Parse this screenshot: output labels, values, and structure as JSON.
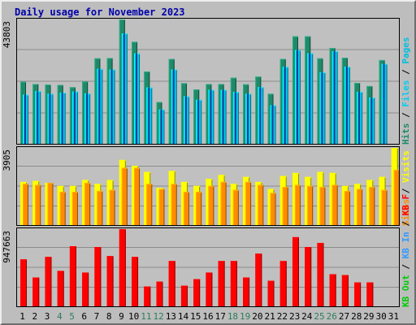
{
  "chart_data": [
    {
      "type": "bar",
      "title": "Daily usage for November 2023",
      "max_label": "43803",
      "ylim": [
        0,
        43803
      ],
      "grid": true,
      "legend_placement": "right",
      "categories": [
        "1",
        "2",
        "3",
        "4",
        "5",
        "6",
        "7",
        "8",
        "9",
        "10",
        "11",
        "12",
        "13",
        "14",
        "15",
        "16",
        "17",
        "18",
        "19",
        "20",
        "21",
        "22",
        "23",
        "24",
        "25",
        "26",
        "27",
        "28",
        "29",
        "30",
        "31"
      ],
      "highlighted_categories": [
        "4",
        "5",
        "11",
        "12",
        "18",
        "19",
        "25",
        "26"
      ],
      "highlight_color": "#2e7d5b",
      "series": [
        {
          "name": "Pages",
          "color": "#00bfe0",
          "values": [
            17500,
            18700,
            17800,
            18200,
            18600,
            17900,
            26500,
            26300,
            38900,
            31900,
            20000,
            12300,
            26300,
            16900,
            15700,
            19200,
            19200,
            18400,
            17800,
            20100,
            13800,
            27200,
            33100,
            32000,
            25300,
            32700,
            27300,
            18500,
            16500,
            28300,
            null
          ]
        },
        {
          "name": "Files",
          "color": "#00ccf0",
          "values": [
            17500,
            18700,
            17800,
            18200,
            18600,
            17900,
            26500,
            26300,
            38900,
            31900,
            20000,
            12300,
            26300,
            16900,
            15700,
            19200,
            19200,
            18400,
            17800,
            20100,
            13800,
            27200,
            33100,
            32000,
            25300,
            32700,
            27300,
            18500,
            16500,
            28300,
            null
          ]
        },
        {
          "name": "Hits",
          "color": "#1f8a6a",
          "values": [
            22000,
            21200,
            21000,
            20900,
            20100,
            22100,
            30200,
            30300,
            43803,
            36000,
            25600,
            14900,
            30000,
            21500,
            19300,
            21200,
            21200,
            23400,
            21100,
            23800,
            17800,
            30000,
            37900,
            37900,
            30200,
            33800,
            30400,
            21600,
            20500,
            29600,
            null
          ]
        }
      ]
    },
    {
      "type": "bar",
      "max_label": "3905",
      "ylim": [
        0,
        3905
      ],
      "grid": true,
      "legend_placement": "right",
      "categories": [
        "1",
        "2",
        "3",
        "4",
        "5",
        "6",
        "7",
        "8",
        "9",
        "10",
        "11",
        "12",
        "13",
        "14",
        "15",
        "16",
        "17",
        "18",
        "19",
        "20",
        "21",
        "22",
        "23",
        "24",
        "25",
        "26",
        "27",
        "28",
        "29",
        "30",
        "31"
      ],
      "series": [
        {
          "name": "Visits",
          "color": "#ffff00",
          "values": [
            2200,
            2250,
            2150,
            2000,
            2000,
            2300,
            2100,
            2300,
            3300,
            3000,
            2700,
            1900,
            2750,
            2200,
            2000,
            2350,
            2550,
            2100,
            2450,
            2200,
            1850,
            2500,
            2650,
            2450,
            2700,
            2650,
            2000,
            2100,
            2300,
            2450,
            3905
          ]
        },
        {
          "name": "Sites",
          "color": "#ff8c00",
          "values": [
            2100,
            2050,
            2150,
            1700,
            1700,
            2150,
            1750,
            1800,
            2900,
            2900,
            2100,
            1850,
            2100,
            1700,
            1700,
            2000,
            2200,
            1800,
            2200,
            2050,
            1650,
            1950,
            2050,
            2000,
            1950,
            2050,
            1750,
            1850,
            1950,
            1800,
            2800
          ]
        }
      ]
    },
    {
      "type": "bar",
      "max_label": "947663",
      "ylim": [
        0,
        947663
      ],
      "grid": true,
      "legend_placement": "right",
      "categories": [
        "1",
        "2",
        "3",
        "4",
        "5",
        "6",
        "7",
        "8",
        "9",
        "10",
        "11",
        "12",
        "13",
        "14",
        "15",
        "16",
        "17",
        "18",
        "19",
        "20",
        "21",
        "22",
        "23",
        "24",
        "25",
        "26",
        "27",
        "28",
        "29",
        "30",
        "31"
      ],
      "series": [
        {
          "name": "KB F",
          "color": "#ff0000",
          "values": [
            580000,
            360000,
            610000,
            440000,
            740000,
            420000,
            730000,
            620000,
            947663,
            610000,
            250000,
            310000,
            560000,
            260000,
            340000,
            420000,
            560000,
            560000,
            360000,
            650000,
            320000,
            560000,
            850000,
            730000,
            780000,
            400000,
            390000,
            300000,
            300000,
            null,
            null
          ]
        },
        {
          "name": "KB In",
          "color": "#3399ff",
          "values": [
            null,
            null,
            null,
            null,
            null,
            null,
            null,
            null,
            null,
            null,
            null,
            null,
            null,
            null,
            null,
            null,
            null,
            null,
            null,
            null,
            null,
            null,
            null,
            null,
            null,
            null,
            null,
            null,
            null,
            null,
            null
          ]
        },
        {
          "name": "KB Out",
          "color": "#00cc00",
          "values": [
            null,
            null,
            null,
            null,
            null,
            null,
            null,
            null,
            null,
            null,
            null,
            null,
            null,
            null,
            null,
            null,
            null,
            null,
            null,
            null,
            null,
            null,
            null,
            null,
            null,
            null,
            null,
            null,
            null,
            null,
            null
          ]
        }
      ]
    }
  ]
}
